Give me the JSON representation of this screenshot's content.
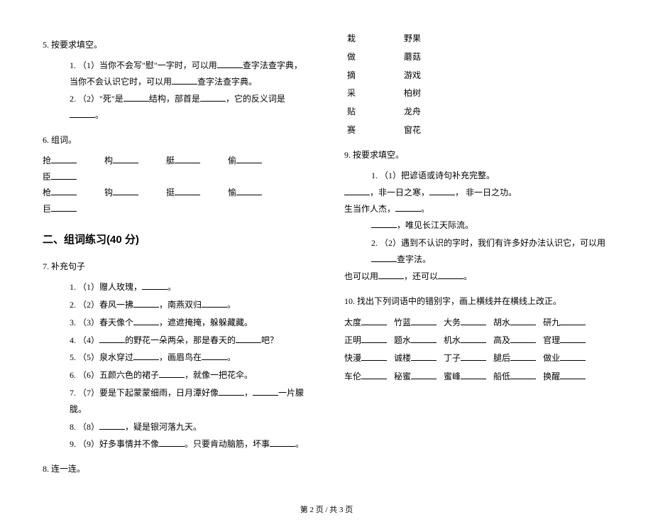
{
  "left": {
    "q5": {
      "title": "5.  按要求填空。",
      "items": [
        "1.  （1）当你不会写\"慰\"一字时，可以用______查字法查字典，当你不会认识它时，可以用______查字法查字典。",
        "2.  （2）\"死\"是______结构，部首是______，它的反义词是______。"
      ]
    },
    "q6": {
      "title": "6.  组词。",
      "rows": [
        [
          "抢______",
          "构______",
          "艇______",
          "偷______",
          "臣______"
        ],
        [
          "枪______",
          "钩______",
          "挺______",
          "愉______",
          "巨______"
        ]
      ]
    },
    "section2": "二、组词练习(40 分)",
    "q7": {
      "title": "7.  补充句子",
      "items": [
        "1.  （1）赠人玫瑰，______。",
        "2.  （2）春风一拂______，南燕双归______。",
        "3.  （3）春天像个______，遮遮掩掩，躲躲藏藏。",
        "4.  （4）______的野花一朵两朵，那是春天的______吧？",
        "5.  （5）泉水穿过______，画眉鸟在______。",
        "6.  （6）五颜六色的裙子______，就像一把花伞。",
        "7.  （7）要是下起蒙蒙细雨，日月潭好像______，______一片朦胧。",
        "8.  （8）______，疑是银河落九天。",
        "9.  （9）好多事情并不像______。只要肯动脑筋，坏事______。"
      ]
    },
    "q8": {
      "title": "8.  连一连。"
    }
  },
  "right": {
    "match": [
      [
        "栽",
        "野果"
      ],
      [
        "做",
        "蘑菇"
      ],
      [
        "摘",
        "游戏"
      ],
      [
        "采",
        "柏树"
      ],
      [
        "贴",
        "龙舟"
      ],
      [
        "赛",
        "窗花"
      ]
    ],
    "q9": {
      "title": "9.  按要求填空。",
      "item1_lead": "1.  （1）把谚语或诗句补充完整。",
      "line1": "______，非一日之寒，______，  非一日之功。",
      "line2a": "生当作人杰，______。",
      "line2b": "______，唯见长江天际流。",
      "item2": "2.  （2）遇到不认识的字时，我们有许多好办法认识它，可以用______查字法。",
      "line3": "也可以用______，还可以______。"
    },
    "q10": {
      "title": "10.  找出下列词语中的错别字，画上横线并在横线上改正。",
      "units": [
        "太度______",
        "竹蓝______",
        "大务______",
        "胡水______",
        "研九______",
        "正明______",
        "题水______",
        "机水______",
        "高及______",
        "官理______",
        "快漫______",
        "诚楼______",
        "丁子______",
        "腿后______",
        "做业______",
        "车伦______",
        "秘蜜______",
        "蜜峰______",
        "船低______",
        "换醒______"
      ]
    }
  },
  "footer": "第 2 页  /  共 3 页"
}
